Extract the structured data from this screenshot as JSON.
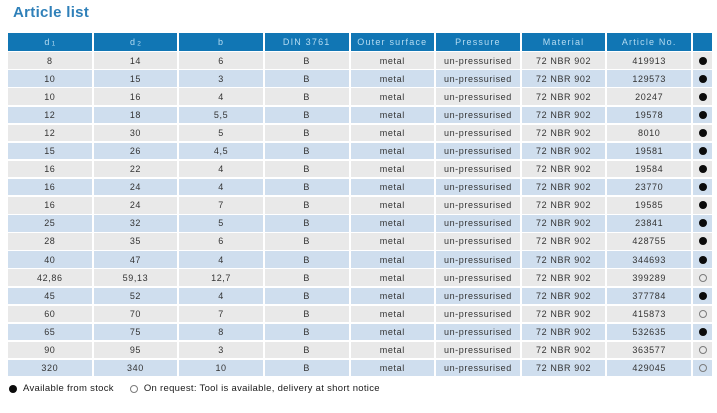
{
  "title": "Article list",
  "colors": {
    "header_bg": "#1176b4",
    "header_text": "#b5dcf2",
    "row_odd": "#e9e9e9",
    "row_even": "#cfdeee",
    "title_text": "#2f80b9",
    "cell_text": "#333333"
  },
  "table": {
    "columns": [
      {
        "key": "d1",
        "label": "d",
        "sub": "1"
      },
      {
        "key": "d2",
        "label": "d",
        "sub": "2"
      },
      {
        "key": "b",
        "label": "b",
        "sub": ""
      },
      {
        "key": "din",
        "label": "DIN 3761",
        "sub": ""
      },
      {
        "key": "outer_surface",
        "label": "Outer surface",
        "sub": ""
      },
      {
        "key": "pressure",
        "label": "Pressure",
        "sub": ""
      },
      {
        "key": "material",
        "label": "Material",
        "sub": ""
      },
      {
        "key": "article_no",
        "label": "Article No.",
        "sub": ""
      },
      {
        "key": "status",
        "label": "",
        "sub": ""
      }
    ],
    "rows": [
      {
        "d1": "8",
        "d2": "14",
        "b": "6",
        "din": "B",
        "outer_surface": "metal",
        "pressure": "un-pressurised",
        "material": "72 NBR 902",
        "article_no": "419913",
        "availability": "stock"
      },
      {
        "d1": "10",
        "d2": "15",
        "b": "3",
        "din": "B",
        "outer_surface": "metal",
        "pressure": "un-pressurised",
        "material": "72 NBR 902",
        "article_no": "129573",
        "availability": "stock"
      },
      {
        "d1": "10",
        "d2": "16",
        "b": "4",
        "din": "B",
        "outer_surface": "metal",
        "pressure": "un-pressurised",
        "material": "72 NBR 902",
        "article_no": "20247",
        "availability": "stock"
      },
      {
        "d1": "12",
        "d2": "18",
        "b": "5,5",
        "din": "B",
        "outer_surface": "metal",
        "pressure": "un-pressurised",
        "material": "72 NBR 902",
        "article_no": "19578",
        "availability": "stock"
      },
      {
        "d1": "12",
        "d2": "30",
        "b": "5",
        "din": "B",
        "outer_surface": "metal",
        "pressure": "un-pressurised",
        "material": "72 NBR 902",
        "article_no": "8010",
        "availability": "stock"
      },
      {
        "d1": "15",
        "d2": "26",
        "b": "4,5",
        "din": "B",
        "outer_surface": "metal",
        "pressure": "un-pressurised",
        "material": "72 NBR 902",
        "article_no": "19581",
        "availability": "stock"
      },
      {
        "d1": "16",
        "d2": "22",
        "b": "4",
        "din": "B",
        "outer_surface": "metal",
        "pressure": "un-pressurised",
        "material": "72 NBR 902",
        "article_no": "19584",
        "availability": "stock"
      },
      {
        "d1": "16",
        "d2": "24",
        "b": "4",
        "din": "B",
        "outer_surface": "metal",
        "pressure": "un-pressurised",
        "material": "72 NBR 902",
        "article_no": "23770",
        "availability": "stock"
      },
      {
        "d1": "16",
        "d2": "24",
        "b": "7",
        "din": "B",
        "outer_surface": "metal",
        "pressure": "un-pressurised",
        "material": "72 NBR 902",
        "article_no": "19585",
        "availability": "stock"
      },
      {
        "d1": "25",
        "d2": "32",
        "b": "5",
        "din": "B",
        "outer_surface": "metal",
        "pressure": "un-pressurised",
        "material": "72 NBR 902",
        "article_no": "23841",
        "availability": "stock"
      },
      {
        "d1": "28",
        "d2": "35",
        "b": "6",
        "din": "B",
        "outer_surface": "metal",
        "pressure": "un-pressurised",
        "material": "72 NBR 902",
        "article_no": "428755",
        "availability": "stock"
      },
      {
        "d1": "40",
        "d2": "47",
        "b": "4",
        "din": "B",
        "outer_surface": "metal",
        "pressure": "un-pressurised",
        "material": "72 NBR 902",
        "article_no": "344693",
        "availability": "stock"
      },
      {
        "d1": "42,86",
        "d2": "59,13",
        "b": "12,7",
        "din": "B",
        "outer_surface": "metal",
        "pressure": "un-pressurised",
        "material": "72 NBR 902",
        "article_no": "399289",
        "availability": "on_request"
      },
      {
        "d1": "45",
        "d2": "52",
        "b": "4",
        "din": "B",
        "outer_surface": "metal",
        "pressure": "un-pressurised",
        "material": "72 NBR 902",
        "article_no": "377784",
        "availability": "stock"
      },
      {
        "d1": "60",
        "d2": "70",
        "b": "7",
        "din": "B",
        "outer_surface": "metal",
        "pressure": "un-pressurised",
        "material": "72 NBR 902",
        "article_no": "415873",
        "availability": "on_request"
      },
      {
        "d1": "65",
        "d2": "75",
        "b": "8",
        "din": "B",
        "outer_surface": "metal",
        "pressure": "un-pressurised",
        "material": "72 NBR 902",
        "article_no": "532635",
        "availability": "stock"
      },
      {
        "d1": "90",
        "d2": "95",
        "b": "3",
        "din": "B",
        "outer_surface": "metal",
        "pressure": "un-pressurised",
        "material": "72 NBR 902",
        "article_no": "363577",
        "availability": "on_request"
      },
      {
        "d1": "320",
        "d2": "340",
        "b": "10",
        "din": "B",
        "outer_surface": "metal",
        "pressure": "un-pressurised",
        "material": "72 NBR 902",
        "article_no": "429045",
        "availability": "on_request"
      }
    ]
  },
  "legend": {
    "available_label": "Available from stock",
    "on_request_label": "On request: Tool is available, delivery at short notice"
  }
}
